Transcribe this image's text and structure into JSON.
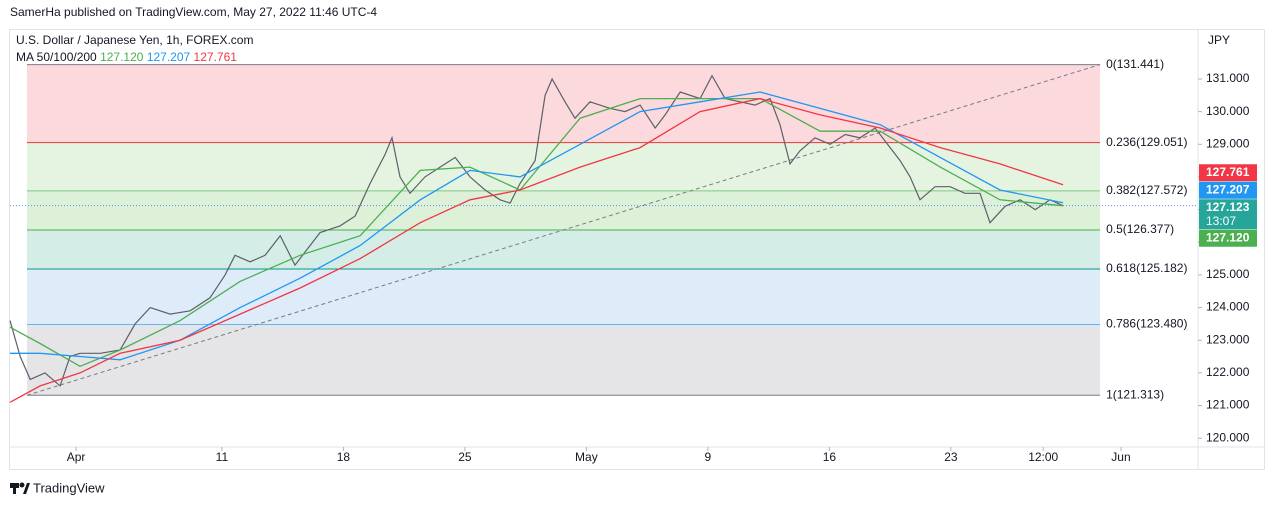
{
  "header": {
    "published": "SamerHa published on TradingView.com, May 27, 2022 11:46 UTC-4"
  },
  "chart_data": {
    "type": "line",
    "title": "U.S. Dollar / Japanese Yen, 1h, FOREX.com",
    "y_axis_label": "JPY",
    "ma_legend": "MA 50/100/200",
    "xlim": [
      -2.72,
      46.17
    ],
    "ylim": [
      119.73,
      132.5
    ],
    "xticks": [
      {
        "value": 0,
        "label": "Apr"
      },
      {
        "value": 6,
        "label": "11"
      },
      {
        "value": 11,
        "label": "18"
      },
      {
        "value": 16,
        "label": "25"
      },
      {
        "value": 21,
        "label": "May"
      },
      {
        "value": 26,
        "label": "9"
      },
      {
        "value": 31,
        "label": "16"
      },
      {
        "value": 36,
        "label": "23"
      },
      {
        "value": 39.8,
        "label": "12:00"
      },
      {
        "value": 43,
        "label": "Jun"
      }
    ],
    "yticks": [
      {
        "value": 120,
        "label": "120.000"
      },
      {
        "value": 121,
        "label": "121.000"
      },
      {
        "value": 122,
        "label": "122.000"
      },
      {
        "value": 123,
        "label": "123.000"
      },
      {
        "value": 124,
        "label": "124.000"
      },
      {
        "value": 125,
        "label": "125.000"
      },
      {
        "value": 126,
        "label": "126.000"
      },
      {
        "value": 127,
        "label": "127.000"
      },
      {
        "value": 128,
        "label": "128.000"
      },
      {
        "value": 129,
        "label": "129.000"
      },
      {
        "value": 130,
        "label": "130.000"
      },
      {
        "value": 131,
        "label": "131.000"
      }
    ],
    "fib": {
      "x": [
        -2.02,
        42.14
      ],
      "levels": [
        {
          "label": "0(131.441)",
          "value": 131.441,
          "color": "#787b86",
          "fill": "#fbd7da"
        },
        {
          "label": "0.236(129.051)",
          "value": 129.051,
          "color": "#e53935",
          "fill": "#e4f3df"
        },
        {
          "label": "0.382(127.572)",
          "value": 127.572,
          "color": "#81c784",
          "fill": "#dbf0d6"
        },
        {
          "label": "0.5(126.377)",
          "value": 126.377,
          "color": "#4caf50",
          "fill": "#d2ece5"
        },
        {
          "label": "0.618(125.182)",
          "value": 125.182,
          "color": "#089981",
          "fill": "#dcebfa"
        },
        {
          "label": "0.786(123.480)",
          "value": 123.48,
          "color": "#64b5f6",
          "fill": "#e4e4e6"
        },
        {
          "label": "1(121.313)",
          "value": 121.313,
          "color": "#787b86"
        }
      ]
    },
    "trendline": {
      "x": [
        -2.02,
        42.14
      ],
      "values": [
        121.313,
        131.441
      ],
      "color": "#787b86"
    },
    "series": [
      {
        "color": "#5d606b",
        "last_value": 127.123,
        "last_label": "127.123",
        "countdown": "13:07",
        "label_color": "#26a69a",
        "x": [
          -2.72,
          -2.3,
          -1.89,
          -1.28,
          -0.66,
          -0.25,
          0.16,
          0.99,
          1.81,
          2.43,
          3.05,
          3.87,
          4.69,
          5.51,
          6.13,
          6.54,
          7.16,
          7.78,
          8.4,
          9.01,
          9.63,
          10.04,
          10.86,
          11.48,
          12.1,
          12.72,
          13,
          13.33,
          13.74,
          14.36,
          14.98,
          15.6,
          16.21,
          16.83,
          17.45,
          17.86,
          18.27,
          18.89,
          19.3,
          19.59,
          20.12,
          20.53,
          21.15,
          21.98,
          22.59,
          23.21,
          23.83,
          24.24,
          24.86,
          25.68,
          26.17,
          26.71,
          27.33,
          27.94,
          28.56,
          28.97,
          29.38,
          29.79,
          30.41,
          31.03,
          31.65,
          32.26,
          32.88,
          33.5,
          33.91,
          34.32,
          34.73,
          35.35,
          35.97,
          36.58,
          37.2,
          37.61,
          38.23,
          38.85,
          39.47,
          40.08,
          40.62
        ],
        "values": [
          123.6,
          122.5,
          121.8,
          122,
          121.6,
          122.5,
          122.6,
          122.6,
          122.7,
          123.5,
          124,
          123.8,
          123.9,
          124.3,
          125,
          125.6,
          125.4,
          125.6,
          126.2,
          125.3,
          125.9,
          126.3,
          126.5,
          126.8,
          127.8,
          128.7,
          129.2,
          128,
          127.5,
          128,
          128.3,
          128.6,
          128,
          127.6,
          127.3,
          127.2,
          127.8,
          128.5,
          130.5,
          131,
          130.3,
          129.8,
          130.3,
          130.1,
          130,
          130.2,
          129.5,
          129.9,
          130.6,
          130.4,
          131.1,
          130.4,
          130.3,
          130.2,
          130.4,
          129.6,
          128.4,
          128.8,
          129.2,
          129,
          129.3,
          129.2,
          129.5,
          128.9,
          128.5,
          128,
          127.3,
          127.7,
          127.7,
          127.5,
          127.5,
          126.6,
          127.1,
          127.3,
          127,
          127.3,
          127.12
        ]
      },
      {
        "color": "#4caf50",
        "last_value": 127.12,
        "last_label": "127.120",
        "x": [
          -2.72,
          -1.48,
          0.16,
          1.81,
          4.28,
          6.75,
          9.22,
          11.69,
          14.16,
          16.21,
          18.27,
          20.74,
          23.21,
          25.68,
          28.15,
          30.62,
          33.09,
          35.56,
          38.02,
          40.62
        ],
        "values": [
          123.4,
          122.9,
          122.2,
          122.7,
          123.6,
          124.8,
          125.6,
          126.2,
          128.2,
          128.3,
          127.6,
          129.8,
          130.4,
          130.4,
          130.4,
          129.4,
          129.4,
          128.3,
          127.3,
          127.12
        ]
      },
      {
        "color": "#2196f3",
        "last_value": 127.207,
        "last_label": "127.207",
        "x": [
          -2.72,
          -1.48,
          0.16,
          1.81,
          4.28,
          6.75,
          9.22,
          11.69,
          14.16,
          16.21,
          18.27,
          20.74,
          23.21,
          25.68,
          28.15,
          30.62,
          33.09,
          35.56,
          38.02,
          40.62
        ],
        "values": [
          122.6,
          122.6,
          122.5,
          122.4,
          123,
          124,
          124.9,
          125.9,
          127.3,
          128.2,
          128,
          129,
          130,
          130.3,
          130.6,
          130.1,
          129.6,
          128.6,
          127.6,
          127.207
        ]
      },
      {
        "color": "#f23645",
        "last_value": 127.761,
        "last_label": "127.761",
        "x": [
          -2.72,
          -1.48,
          0.16,
          1.81,
          4.28,
          6.75,
          9.22,
          11.69,
          14.16,
          16.21,
          18.27,
          20.74,
          23.21,
          25.68,
          28.15,
          30.62,
          33.09,
          35.56,
          38.02,
          40.62
        ],
        "values": [
          121.1,
          121.6,
          122,
          122.6,
          123,
          123.8,
          124.6,
          125.5,
          126.6,
          127.3,
          127.6,
          128.3,
          128.9,
          130,
          130.4,
          129.9,
          129.5,
          128.9,
          128.4,
          127.761
        ]
      }
    ],
    "grid": false
  },
  "footer": {
    "brand": "TradingView"
  }
}
